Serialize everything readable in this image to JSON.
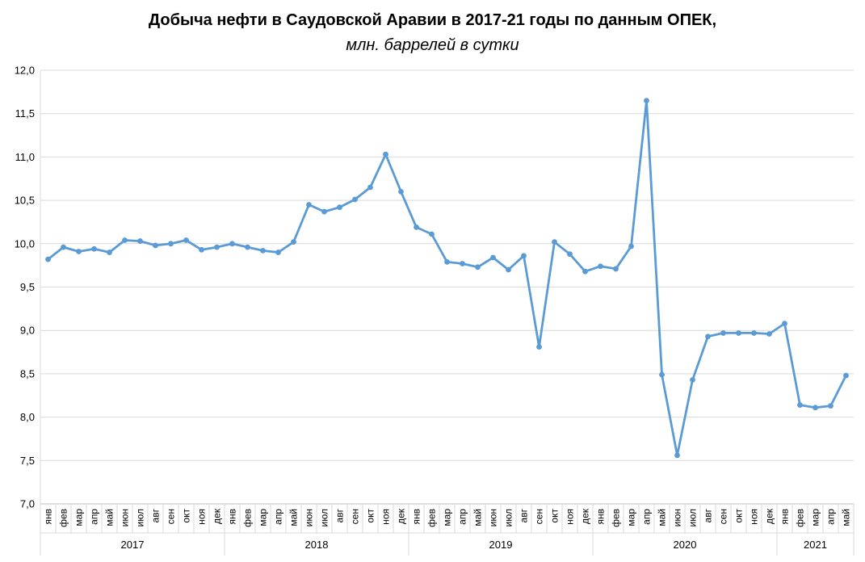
{
  "chart_data": {
    "type": "line",
    "title": "Добыча нефти в Саудовской Аравии в 2017-21 годы по данным ОПЕК,",
    "subtitle": "млн. баррелей в сутки",
    "ylim": [
      7.0,
      12.0
    ],
    "yticks": [
      "7,0",
      "7,5",
      "8,0",
      "8,5",
      "9,0",
      "9,5",
      "10,0",
      "10,5",
      "11,0",
      "11,5",
      "12,0"
    ],
    "grid": true,
    "legend": "none",
    "line_color": "#5B9BD5",
    "years": [
      {
        "label": "2017",
        "months": 12
      },
      {
        "label": "2018",
        "months": 12
      },
      {
        "label": "2019",
        "months": 12
      },
      {
        "label": "2020",
        "months": 12
      },
      {
        "label": "2021",
        "months": 5
      }
    ],
    "categories": [
      "янв",
      "фев",
      "мар",
      "апр",
      "май",
      "июн",
      "июл",
      "авг",
      "сен",
      "окт",
      "ноя",
      "дек",
      "янв",
      "фев",
      "мар",
      "апр",
      "май",
      "июн",
      "июл",
      "авг",
      "сен",
      "окт",
      "ноя",
      "дек",
      "янв",
      "фев",
      "мар",
      "апр",
      "май",
      "июн",
      "июл",
      "авг",
      "сен",
      "окт",
      "ноя",
      "дек",
      "янв",
      "фев",
      "мар",
      "апр",
      "май",
      "июн",
      "июл",
      "авг",
      "сен",
      "окт",
      "ноя",
      "дек",
      "янв",
      "фев",
      "мар",
      "апр",
      "май"
    ],
    "values": [
      9.82,
      9.96,
      9.91,
      9.94,
      9.9,
      10.04,
      10.03,
      9.98,
      10.0,
      10.04,
      9.93,
      9.96,
      10.0,
      9.96,
      9.92,
      9.9,
      10.02,
      10.45,
      10.37,
      10.42,
      10.51,
      10.65,
      11.03,
      10.6,
      10.19,
      10.11,
      9.79,
      9.77,
      9.73,
      9.84,
      9.7,
      9.86,
      8.81,
      10.02,
      9.88,
      9.68,
      9.74,
      9.71,
      9.97,
      11.65,
      8.49,
      7.56,
      8.43,
      8.93,
      8.97,
      8.97,
      8.97,
      8.96,
      9.08,
      8.14,
      8.11,
      8.13,
      8.48
    ]
  }
}
